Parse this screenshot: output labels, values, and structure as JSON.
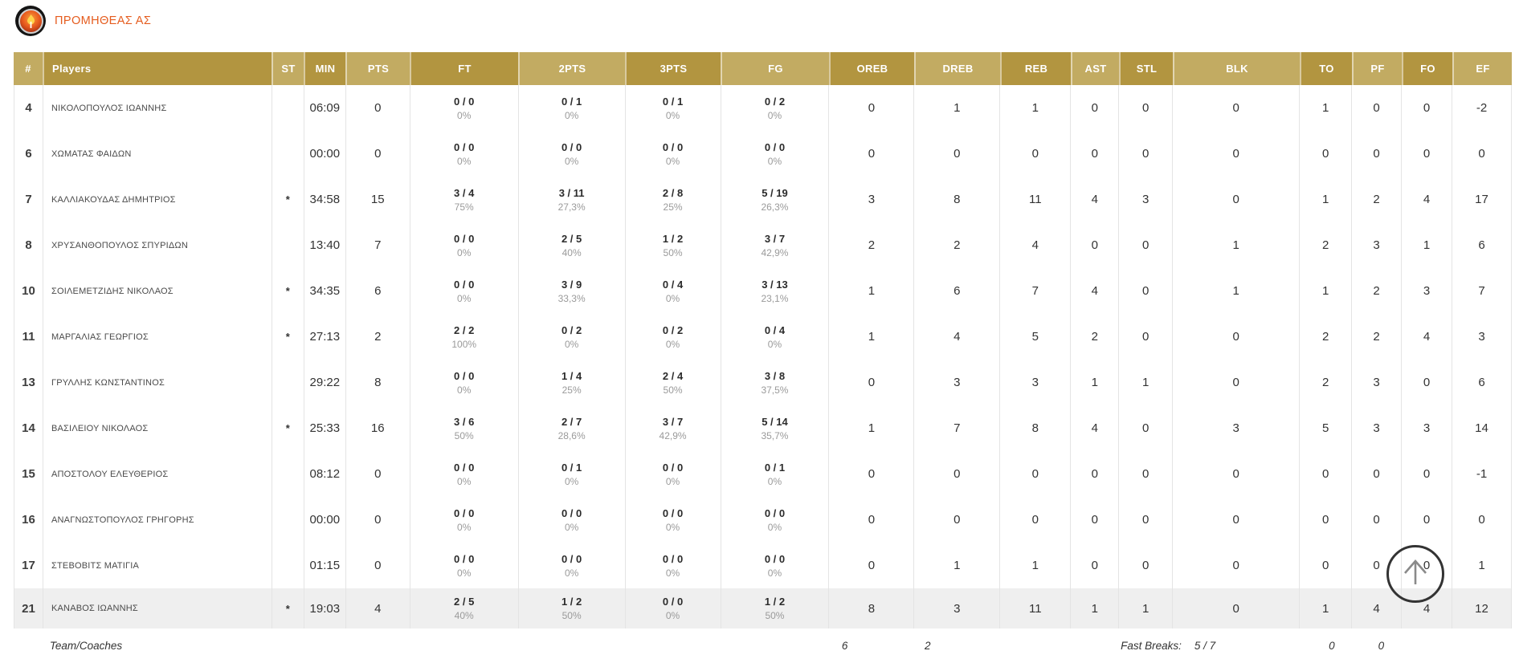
{
  "page": {
    "team_name": "ΠΡΟΜΗΘΕΑΣ ΑΣ"
  },
  "colors": {
    "header_gold_dark": "#b29540",
    "header_gold_light": "#c2ab62",
    "team_name_orange": "#e55c1e",
    "row_highlight": "#efefef"
  },
  "table": {
    "columns": [
      {
        "key": "num",
        "label": "#"
      },
      {
        "key": "player",
        "label": "Players"
      },
      {
        "key": "st",
        "label": "ST"
      },
      {
        "key": "min",
        "label": "MIN"
      },
      {
        "key": "pts",
        "label": "PTS"
      },
      {
        "key": "ft",
        "label": "FT"
      },
      {
        "key": "p2",
        "label": "2PTS"
      },
      {
        "key": "p3",
        "label": "3PTS"
      },
      {
        "key": "fg",
        "label": "FG"
      },
      {
        "key": "oreb",
        "label": "OREB"
      },
      {
        "key": "dreb",
        "label": "DREB"
      },
      {
        "key": "reb",
        "label": "REB"
      },
      {
        "key": "ast",
        "label": "AST"
      },
      {
        "key": "stl",
        "label": "STL"
      },
      {
        "key": "blk",
        "label": "BLK"
      },
      {
        "key": "to",
        "label": "TO"
      },
      {
        "key": "pf",
        "label": "PF"
      },
      {
        "key": "fo",
        "label": "FO"
      },
      {
        "key": "ef",
        "label": "EF"
      }
    ],
    "rows": [
      {
        "num": "4",
        "player": "ΝΙΚΟΛΟΠΟΥΛΟΣ ΙΩΑΝΝΗΣ",
        "st": "",
        "min": "06:09",
        "pts": "0",
        "ft": {
          "made": "0 / 0",
          "pct": "0%"
        },
        "p2": {
          "made": "0 / 1",
          "pct": "0%"
        },
        "p3": {
          "made": "0 / 1",
          "pct": "0%"
        },
        "fg": {
          "made": "0 / 2",
          "pct": "0%"
        },
        "oreb": "0",
        "dreb": "1",
        "reb": "1",
        "ast": "0",
        "stl": "0",
        "blk": "0",
        "to": "1",
        "pf": "0",
        "fo": "0",
        "ef": "-2",
        "highlight": false
      },
      {
        "num": "6",
        "player": "ΧΩΜΑΤΑΣ ΦΑΙΔΩΝ",
        "st": "",
        "min": "00:00",
        "pts": "0",
        "ft": {
          "made": "0 / 0",
          "pct": "0%"
        },
        "p2": {
          "made": "0 / 0",
          "pct": "0%"
        },
        "p3": {
          "made": "0 / 0",
          "pct": "0%"
        },
        "fg": {
          "made": "0 / 0",
          "pct": "0%"
        },
        "oreb": "0",
        "dreb": "0",
        "reb": "0",
        "ast": "0",
        "stl": "0",
        "blk": "0",
        "to": "0",
        "pf": "0",
        "fo": "0",
        "ef": "0",
        "highlight": false
      },
      {
        "num": "7",
        "player": "ΚΑΛΛΙΑΚΟΥΔΑΣ ΔΗΜΗΤΡΙΟΣ",
        "st": "*",
        "min": "34:58",
        "pts": "15",
        "ft": {
          "made": "3 / 4",
          "pct": "75%"
        },
        "p2": {
          "made": "3 / 11",
          "pct": "27,3%"
        },
        "p3": {
          "made": "2 / 8",
          "pct": "25%"
        },
        "fg": {
          "made": "5 / 19",
          "pct": "26,3%"
        },
        "oreb": "3",
        "dreb": "8",
        "reb": "11",
        "ast": "4",
        "stl": "3",
        "blk": "0",
        "to": "1",
        "pf": "2",
        "fo": "4",
        "ef": "17",
        "highlight": false
      },
      {
        "num": "8",
        "player": "ΧΡΥΣΑΝΘΟΠΟΥΛΟΣ ΣΠΥΡΙΔΩΝ",
        "st": "",
        "min": "13:40",
        "pts": "7",
        "ft": {
          "made": "0 / 0",
          "pct": "0%"
        },
        "p2": {
          "made": "2 / 5",
          "pct": "40%"
        },
        "p3": {
          "made": "1 / 2",
          "pct": "50%"
        },
        "fg": {
          "made": "3 / 7",
          "pct": "42,9%"
        },
        "oreb": "2",
        "dreb": "2",
        "reb": "4",
        "ast": "0",
        "stl": "0",
        "blk": "1",
        "to": "2",
        "pf": "3",
        "fo": "1",
        "ef": "6",
        "highlight": false
      },
      {
        "num": "10",
        "player": "ΣΟΙΛΕΜΕΤΖΙΔΗΣ ΝΙΚΟΛΑΟΣ",
        "st": "*",
        "min": "34:35",
        "pts": "6",
        "ft": {
          "made": "0 / 0",
          "pct": "0%"
        },
        "p2": {
          "made": "3 / 9",
          "pct": "33,3%"
        },
        "p3": {
          "made": "0 / 4",
          "pct": "0%"
        },
        "fg": {
          "made": "3 / 13",
          "pct": "23,1%"
        },
        "oreb": "1",
        "dreb": "6",
        "reb": "7",
        "ast": "4",
        "stl": "0",
        "blk": "1",
        "to": "1",
        "pf": "2",
        "fo": "3",
        "ef": "7",
        "highlight": false
      },
      {
        "num": "11",
        "player": "ΜΑΡΓΑΛΙΑΣ ΓΕΩΡΓΙΟΣ",
        "st": "*",
        "min": "27:13",
        "pts": "2",
        "ft": {
          "made": "2 / 2",
          "pct": "100%"
        },
        "p2": {
          "made": "0 / 2",
          "pct": "0%"
        },
        "p3": {
          "made": "0 / 2",
          "pct": "0%"
        },
        "fg": {
          "made": "0 / 4",
          "pct": "0%"
        },
        "oreb": "1",
        "dreb": "4",
        "reb": "5",
        "ast": "2",
        "stl": "0",
        "blk": "0",
        "to": "2",
        "pf": "2",
        "fo": "4",
        "ef": "3",
        "highlight": false
      },
      {
        "num": "13",
        "player": "ΓΡΥΛΛΗΣ ΚΩΝΣΤΑΝΤΙΝΟΣ",
        "st": "",
        "min": "29:22",
        "pts": "8",
        "ft": {
          "made": "0 / 0",
          "pct": "0%"
        },
        "p2": {
          "made": "1 / 4",
          "pct": "25%"
        },
        "p3": {
          "made": "2 / 4",
          "pct": "50%"
        },
        "fg": {
          "made": "3 / 8",
          "pct": "37,5%"
        },
        "oreb": "0",
        "dreb": "3",
        "reb": "3",
        "ast": "1",
        "stl": "1",
        "blk": "0",
        "to": "2",
        "pf": "3",
        "fo": "0",
        "ef": "6",
        "highlight": false
      },
      {
        "num": "14",
        "player": "ΒΑΣΙΛΕΙΟΥ ΝΙΚΟΛΑΟΣ",
        "st": "*",
        "min": "25:33",
        "pts": "16",
        "ft": {
          "made": "3 / 6",
          "pct": "50%"
        },
        "p2": {
          "made": "2 / 7",
          "pct": "28,6%"
        },
        "p3": {
          "made": "3 / 7",
          "pct": "42,9%"
        },
        "fg": {
          "made": "5 / 14",
          "pct": "35,7%"
        },
        "oreb": "1",
        "dreb": "7",
        "reb": "8",
        "ast": "4",
        "stl": "0",
        "blk": "3",
        "to": "5",
        "pf": "3",
        "fo": "3",
        "ef": "14",
        "highlight": false
      },
      {
        "num": "15",
        "player": "ΑΠΟΣΤΟΛΟΥ ΕΛΕΥΘΕΡΙΟΣ",
        "st": "",
        "min": "08:12",
        "pts": "0",
        "ft": {
          "made": "0 / 0",
          "pct": "0%"
        },
        "p2": {
          "made": "0 / 1",
          "pct": "0%"
        },
        "p3": {
          "made": "0 / 0",
          "pct": "0%"
        },
        "fg": {
          "made": "0 / 1",
          "pct": "0%"
        },
        "oreb": "0",
        "dreb": "0",
        "reb": "0",
        "ast": "0",
        "stl": "0",
        "blk": "0",
        "to": "0",
        "pf": "0",
        "fo": "0",
        "ef": "-1",
        "highlight": false
      },
      {
        "num": "16",
        "player": "ΑΝΑΓΝΩΣΤΟΠΟΥΛΟΣ ΓΡΗΓΟΡΗΣ",
        "st": "",
        "min": "00:00",
        "pts": "0",
        "ft": {
          "made": "0 / 0",
          "pct": "0%"
        },
        "p2": {
          "made": "0 / 0",
          "pct": "0%"
        },
        "p3": {
          "made": "0 / 0",
          "pct": "0%"
        },
        "fg": {
          "made": "0 / 0",
          "pct": "0%"
        },
        "oreb": "0",
        "dreb": "0",
        "reb": "0",
        "ast": "0",
        "stl": "0",
        "blk": "0",
        "to": "0",
        "pf": "0",
        "fo": "0",
        "ef": "0",
        "highlight": false
      },
      {
        "num": "17",
        "player": "ΣΤΕΒΟΒΙΤΣ ΜΑΤΙΓΙΑ",
        "st": "",
        "min": "01:15",
        "pts": "0",
        "ft": {
          "made": "0 / 0",
          "pct": "0%"
        },
        "p2": {
          "made": "0 / 0",
          "pct": "0%"
        },
        "p3": {
          "made": "0 / 0",
          "pct": "0%"
        },
        "fg": {
          "made": "0 / 0",
          "pct": "0%"
        },
        "oreb": "0",
        "dreb": "1",
        "reb": "1",
        "ast": "0",
        "stl": "0",
        "blk": "0",
        "to": "0",
        "pf": "0",
        "fo": "0",
        "ef": "1",
        "highlight": false
      },
      {
        "num": "21",
        "player": "ΚΑΝΑΒΟΣ ΙΩΑΝΝΗΣ",
        "st": "*",
        "min": "19:03",
        "pts": "4",
        "ft": {
          "made": "2 / 5",
          "pct": "40%"
        },
        "p2": {
          "made": "1 / 2",
          "pct": "50%"
        },
        "p3": {
          "made": "0 / 0",
          "pct": "0%"
        },
        "fg": {
          "made": "1 / 2",
          "pct": "50%"
        },
        "oreb": "8",
        "dreb": "3",
        "reb": "11",
        "ast": "1",
        "stl": "1",
        "blk": "0",
        "to": "1",
        "pf": "4",
        "fo": "4",
        "ef": "12",
        "highlight": true
      }
    ],
    "team_row": {
      "label": "Team/Coaches",
      "oreb": "6",
      "dreb": "2",
      "fast_breaks_label": "Fast Breaks:",
      "fast_breaks_value": "5 / 7",
      "to": "0",
      "pf": "0"
    }
  },
  "scroll_button": {
    "icon": "up-arrow"
  }
}
